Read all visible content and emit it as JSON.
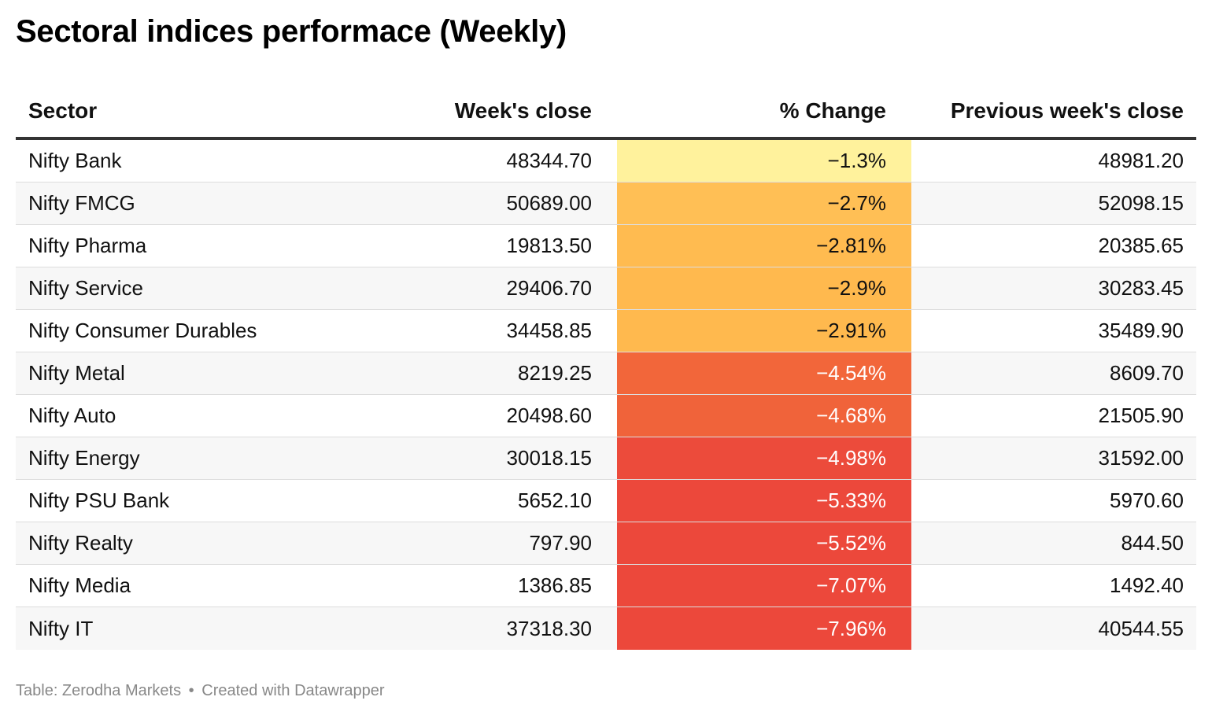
{
  "title": "Sectoral indices performace (Weekly)",
  "footer": {
    "source": "Table: Zerodha Markets",
    "separator": "•",
    "credit": "Created with Datawrapper"
  },
  "chart_data": {
    "type": "table",
    "columns": [
      "Sector",
      "Week's close",
      "% Change",
      "Previous week's close"
    ],
    "rows": [
      {
        "sector": "Nifty Bank",
        "close": "48344.70",
        "change": "−1.3%",
        "prev": "48981.20",
        "color": "#fff29c",
        "text_color": "#111111"
      },
      {
        "sector": "Nifty FMCG",
        "close": "50689.00",
        "change": "−2.7%",
        "prev": "52098.15",
        "color": "#ffbf55",
        "text_color": "#111111"
      },
      {
        "sector": "Nifty Pharma",
        "close": "19813.50",
        "change": "−2.81%",
        "prev": "20385.65",
        "color": "#ffbb50",
        "text_color": "#111111"
      },
      {
        "sector": "Nifty Service",
        "close": "29406.70",
        "change": "−2.9%",
        "prev": "30283.45",
        "color": "#ffb94e",
        "text_color": "#111111"
      },
      {
        "sector": "Nifty Consumer Durables",
        "close": "34458.85",
        "change": "−2.91%",
        "prev": "35489.90",
        "color": "#ffb94e",
        "text_color": "#111111"
      },
      {
        "sector": "Nifty Metal",
        "close": "8219.25",
        "change": "−4.54%",
        "prev": "8609.70",
        "color": "#f2663a",
        "text_color": "#ffffff"
      },
      {
        "sector": "Nifty Auto",
        "close": "20498.60",
        "change": "−4.68%",
        "prev": "21505.90",
        "color": "#f0633a",
        "text_color": "#ffffff"
      },
      {
        "sector": "Nifty Energy",
        "close": "30018.15",
        "change": "−4.98%",
        "prev": "31592.00",
        "color": "#ec4b3b",
        "text_color": "#ffffff"
      },
      {
        "sector": "Nifty PSU Bank",
        "close": "5652.10",
        "change": "−5.33%",
        "prev": "5970.60",
        "color": "#ec483b",
        "text_color": "#ffffff"
      },
      {
        "sector": "Nifty Realty",
        "close": "797.90",
        "change": "−5.52%",
        "prev": "844.50",
        "color": "#ec483b",
        "text_color": "#ffffff"
      },
      {
        "sector": "Nifty Media",
        "close": "1386.85",
        "change": "−7.07%",
        "prev": "1492.40",
        "color": "#ec483b",
        "text_color": "#ffffff"
      },
      {
        "sector": "Nifty IT",
        "close": "37318.30",
        "change": "−7.96%",
        "prev": "40544.55",
        "color": "#ec483b",
        "text_color": "#ffffff"
      }
    ]
  }
}
